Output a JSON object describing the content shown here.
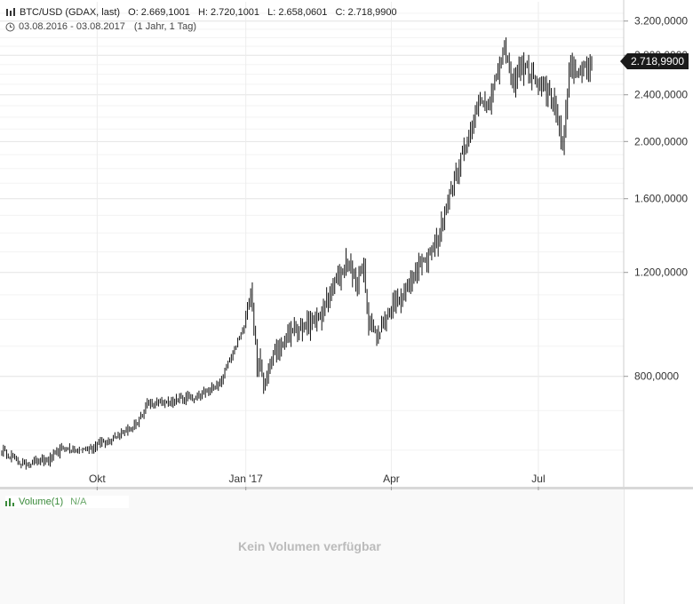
{
  "header": {
    "symbol": "BTC/USD (GDAX, last)",
    "open": "O: 2.669,1001",
    "high": "H: 2.720,1001",
    "low": "L: 2.658,0601",
    "close": "C: 2.718,9900",
    "range": "03.08.2016 - 03.08.2017",
    "period": "(1 Jahr, 1 Tag)"
  },
  "last_price_label": "2.718,9900",
  "volume": {
    "label": "Volume(1)",
    "value": "N/A",
    "empty_message": "Kein Volumen verfügbar"
  },
  "colors": {
    "candle": "#111111",
    "grid": "#ececec",
    "volume_text": "#3a8a3a"
  },
  "chart_data": {
    "type": "bar",
    "y_scale": "log",
    "ylim": [
      520,
      3450
    ],
    "xlim": [
      "2016-08-03",
      "2017-08-03"
    ],
    "y_ticks": [
      {
        "value": 800,
        "label": "800,0000"
      },
      {
        "value": 1200,
        "label": "1.200,0000"
      },
      {
        "value": 1600,
        "label": "1.600,0000"
      },
      {
        "value": 2000,
        "label": "2.000,0000"
      },
      {
        "value": 2400,
        "label": "2.400,0000"
      },
      {
        "value": 2800,
        "label": "2.800,0000"
      },
      {
        "value": 3200,
        "label": "3.200,0000"
      }
    ],
    "x_ticks": [
      {
        "date": "2016-10-01",
        "label": "Okt"
      },
      {
        "date": "2017-01-01",
        "label": "Jan '17"
      },
      {
        "date": "2017-04-01",
        "label": "Apr"
      },
      {
        "date": "2017-07-01",
        "label": "Jul"
      }
    ],
    "grid": true,
    "anchors": [
      [
        "2016-08-03",
        600
      ],
      [
        "2016-08-15",
        570
      ],
      [
        "2016-09-01",
        575
      ],
      [
        "2016-09-10",
        605
      ],
      [
        "2016-09-20",
        600
      ],
      [
        "2016-10-01",
        612
      ],
      [
        "2016-10-15",
        640
      ],
      [
        "2016-10-25",
        660
      ],
      [
        "2016-11-01",
        720
      ],
      [
        "2016-11-15",
        725
      ],
      [
        "2016-12-01",
        740
      ],
      [
        "2016-12-15",
        770
      ],
      [
        "2016-12-25",
        890
      ],
      [
        "2016-12-31",
        970
      ],
      [
        "2017-01-04",
        1120
      ],
      [
        "2017-01-08",
        850
      ],
      [
        "2017-01-12",
        790
      ],
      [
        "2017-01-20",
        890
      ],
      [
        "2017-02-01",
        960
      ],
      [
        "2017-02-15",
        1000
      ],
      [
        "2017-02-25",
        1150
      ],
      [
        "2017-03-05",
        1260
      ],
      [
        "2017-03-10",
        1150
      ],
      [
        "2017-03-15",
        1230
      ],
      [
        "2017-03-18",
        970
      ],
      [
        "2017-03-25",
        950
      ],
      [
        "2017-04-01",
        1050
      ],
      [
        "2017-04-15",
        1180
      ],
      [
        "2017-05-01",
        1400
      ],
      [
        "2017-05-10",
        1750
      ],
      [
        "2017-05-20",
        2100
      ],
      [
        "2017-05-25",
        2300
      ],
      [
        "2017-06-01",
        2350
      ],
      [
        "2017-06-10",
        2850
      ],
      [
        "2017-06-15",
        2500
      ],
      [
        "2017-06-20",
        2700
      ],
      [
        "2017-07-01",
        2500
      ],
      [
        "2017-07-10",
        2400
      ],
      [
        "2017-07-16",
        1950
      ],
      [
        "2017-07-20",
        2700
      ],
      [
        "2017-07-25",
        2600
      ],
      [
        "2017-08-03",
        2718.99
      ]
    ]
  }
}
